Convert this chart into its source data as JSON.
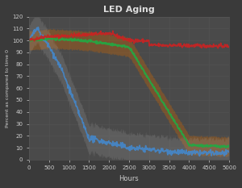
{
  "title": "LED Aging",
  "xlabel": "Hours",
  "ylabel": "Percent as compared to time 0",
  "xlim": [
    0,
    5000
  ],
  "ylim": [
    0,
    120
  ],
  "yticks": [
    0,
    10,
    20,
    30,
    40,
    50,
    60,
    70,
    80,
    90,
    100,
    110,
    120
  ],
  "xticks": [
    0,
    500,
    1000,
    1500,
    2000,
    2500,
    3000,
    3500,
    4000,
    4500,
    5000
  ],
  "background_color": "#3a3a3a",
  "axes_color": "#4a4a4a",
  "grid_color": "#555555",
  "text_color": "#cccccc",
  "title_color": "#dddddd",
  "red_line_color": "#cc2222",
  "green_line_color": "#22aa44",
  "blue_line_color": "#4488cc",
  "orange_band_color": "#cc6600",
  "gray_band_color": "#aaaaaa"
}
